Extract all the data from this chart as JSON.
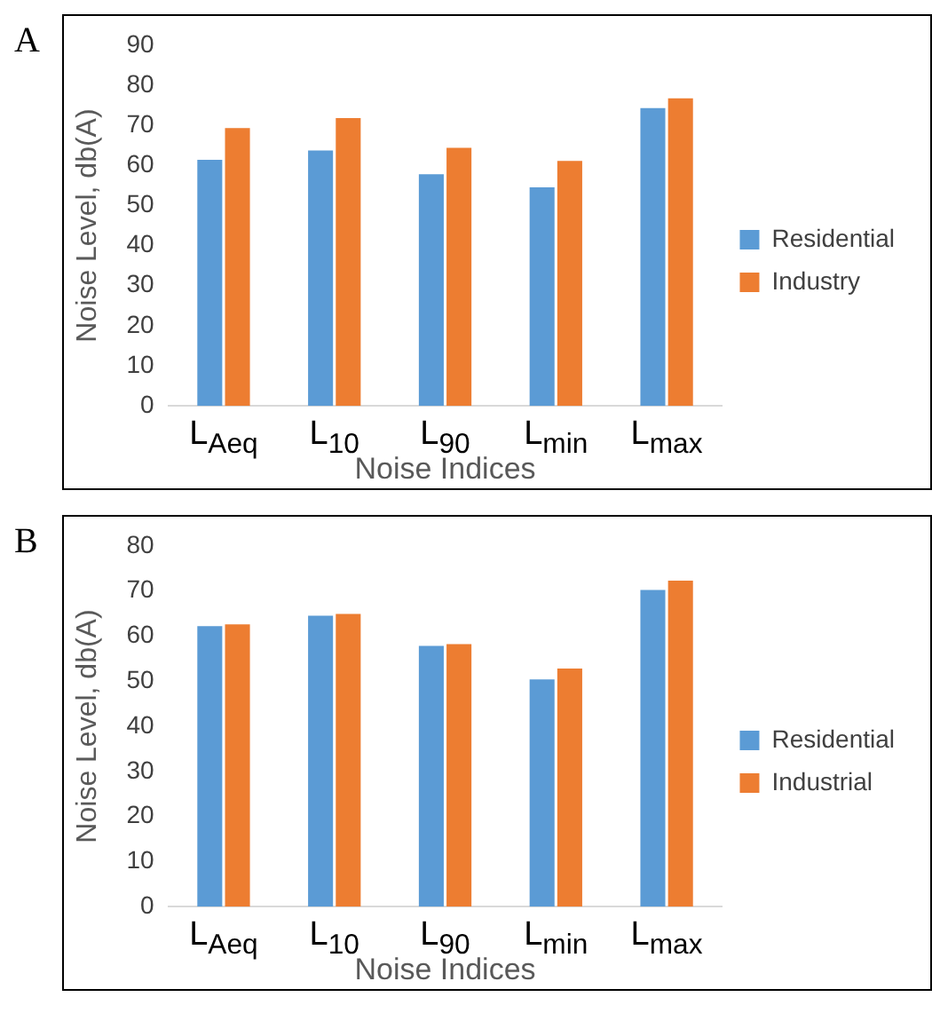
{
  "chart_data": [
    {
      "type": "bar",
      "title": "A",
      "xlabel": "Noise Indices",
      "ylabel": "Noise Level, db(A)",
      "categories": [
        "L$_{Aeq}$",
        "L$_{10}$",
        "L$_{90}$",
        "L$_{min}$",
        "L$_{max}$"
      ],
      "series": [
        {
          "name": "Residential",
          "color": "#5b9bd5",
          "values": [
            61.4,
            63.7,
            57.8,
            54.5,
            74.3
          ]
        },
        {
          "name": "Industry",
          "color": "#ed7d31",
          "values": [
            69.3,
            71.8,
            64.4,
            61.1,
            76.7
          ]
        }
      ],
      "ylim": [
        0,
        90
      ],
      "yticks": [
        0,
        10,
        20,
        30,
        40,
        50,
        60,
        70,
        80,
        90
      ],
      "grid": false,
      "legend": "right"
    },
    {
      "type": "bar",
      "title": "B",
      "xlabel": "Noise Indices",
      "ylabel": "Noise Level, db(A)",
      "categories": [
        "L$_{Aeq}$",
        "L$_{10}$",
        "L$_{90}$",
        "L$_{min}$",
        "L$_{max}$"
      ],
      "series": [
        {
          "name": "Residential",
          "color": "#5b9bd5",
          "values": [
            62.2,
            64.5,
            57.8,
            50.4,
            70.2
          ]
        },
        {
          "name": "Industrial",
          "color": "#ed7d31",
          "values": [
            62.6,
            64.9,
            58.2,
            52.8,
            72.3
          ]
        }
      ],
      "ylim": [
        0,
        80
      ],
      "yticks": [
        0,
        10,
        20,
        30,
        40,
        50,
        60,
        70,
        80
      ],
      "grid": false,
      "legend": "right"
    }
  ]
}
